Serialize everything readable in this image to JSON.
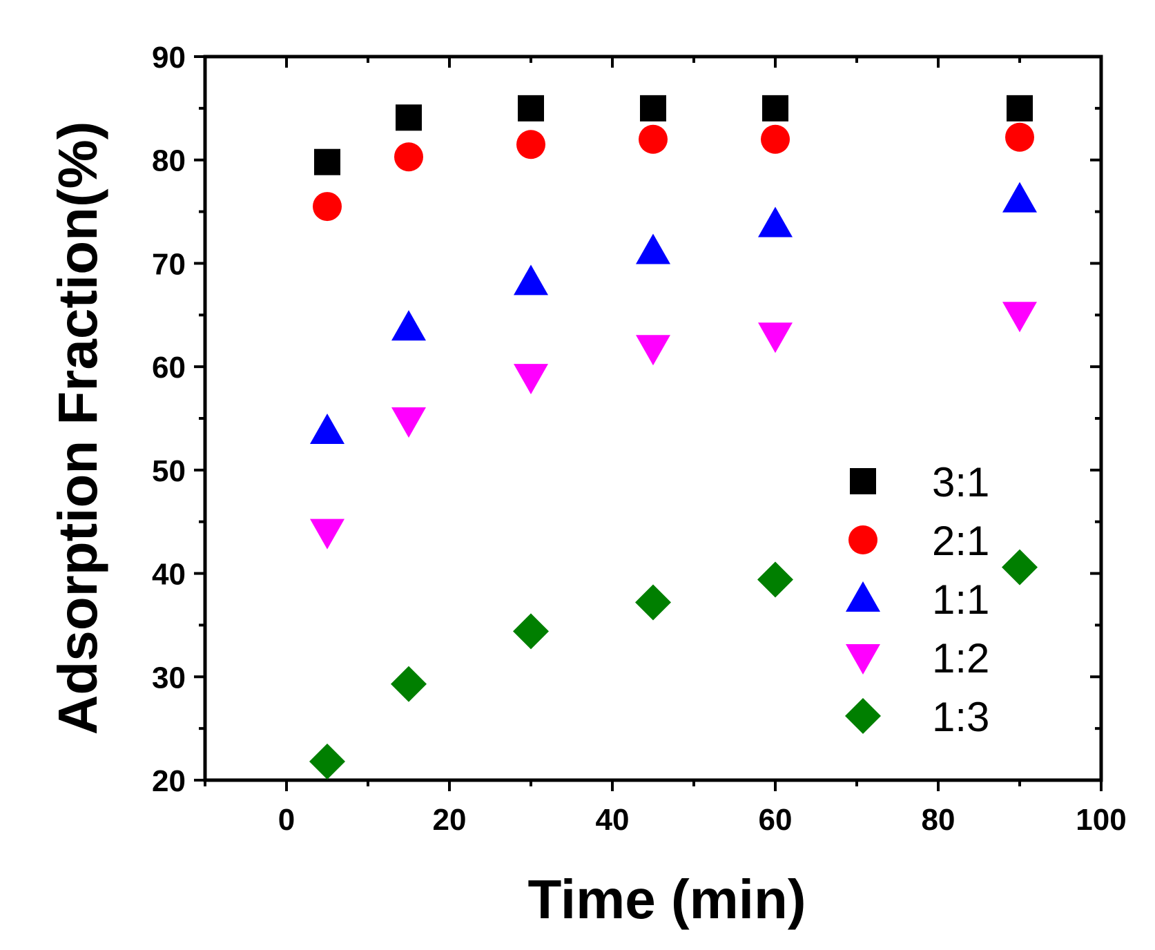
{
  "chart_data": {
    "type": "scatter",
    "title": "",
    "xlabel": "Time (min)",
    "ylabel": "Adsorption Fraction(%)",
    "xlim": [
      -10,
      100
    ],
    "ylim": [
      20,
      90
    ],
    "xticks": [
      0,
      20,
      40,
      60,
      80,
      100
    ],
    "yticks": [
      20,
      30,
      40,
      50,
      60,
      70,
      80,
      90
    ],
    "grid": false,
    "legend_position": "bottom-right",
    "series": [
      {
        "name": "3:1",
        "marker": "square",
        "color": "#000000",
        "x": [
          5,
          15,
          30,
          45,
          60,
          90
        ],
        "y": [
          79.8,
          84.1,
          85.0,
          85.0,
          85.0,
          85.0
        ]
      },
      {
        "name": "2:1",
        "marker": "circle",
        "color": "#ff0000",
        "x": [
          5,
          15,
          30,
          45,
          60,
          90
        ],
        "y": [
          75.5,
          80.3,
          81.5,
          82.0,
          82.0,
          82.2
        ]
      },
      {
        "name": "1:1",
        "marker": "triangle-up",
        "color": "#0000ff",
        "x": [
          5,
          15,
          30,
          45,
          60,
          90
        ],
        "y": [
          53.8,
          63.8,
          68.2,
          71.2,
          73.8,
          76.2
        ]
      },
      {
        "name": "1:2",
        "marker": "triangle-down",
        "color": "#ff00ff",
        "x": [
          5,
          15,
          30,
          45,
          60,
          90
        ],
        "y": [
          44.0,
          54.8,
          59.0,
          61.8,
          63.0,
          65.0
        ]
      },
      {
        "name": "1:3",
        "marker": "diamond",
        "color": "#007f00",
        "x": [
          5,
          15,
          30,
          45,
          60,
          90
        ],
        "y": [
          21.8,
          29.3,
          34.4,
          37.2,
          39.4,
          40.6
        ]
      }
    ]
  }
}
